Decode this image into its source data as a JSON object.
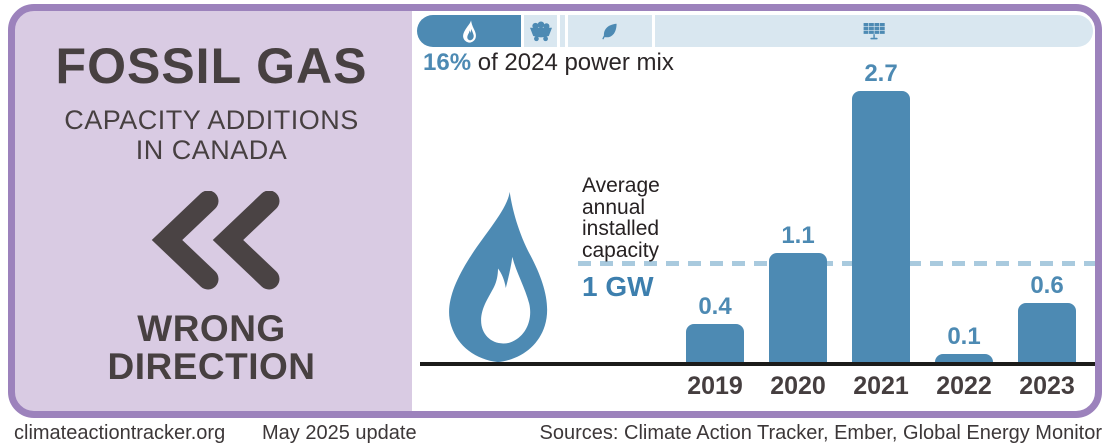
{
  "panel": {
    "title": "FOSSIL GAS",
    "subtitle_line1": "CAPACITY ADDITIONS",
    "subtitle_line2": "IN CANADA",
    "verdict_line1": "WRONG",
    "verdict_line2": "DIRECTION"
  },
  "power_mix": {
    "highlight": "16%",
    "label_rest": " of 2024 power mix",
    "segments": [
      {
        "name": "fossil-gas",
        "icon": "flame-icon",
        "share_pct": 15.7,
        "highlighted": true
      },
      {
        "name": "coal",
        "icon": "coal-cart-icon",
        "share_pct": 4.9,
        "highlighted": false
      },
      {
        "name": "other-fossil",
        "icon": "",
        "share_pct": 0.8,
        "highlighted": false
      },
      {
        "name": "bioenergy",
        "icon": "leaf-icon",
        "share_pct": 12.7,
        "highlighted": false
      },
      {
        "name": "renewables",
        "icon": "solar-panel-icon",
        "share_pct": 65.9,
        "highlighted": false
      }
    ]
  },
  "chart_data": {
    "type": "bar",
    "title": "Fossil gas capacity additions in Canada",
    "categories": [
      "2019",
      "2020",
      "2021",
      "2022",
      "2023"
    ],
    "values": [
      0.4,
      1.1,
      2.7,
      0.1,
      0.6
    ],
    "unit": "GW",
    "ylim": [
      0,
      2.8
    ],
    "grid": false,
    "value_labels": true,
    "bar_color": "#4d8ab3",
    "average_line": {
      "value": 1,
      "label": "1 GW",
      "annotation": "Average annual installed capacity",
      "style": "dashed",
      "color": "#a9cade"
    }
  },
  "footer": {
    "site": "climateactiontracker.org",
    "update": "May 2025 update",
    "sources": "Sources: Climate Action Tracker, Ember, Global Energy Monitor"
  },
  "colors": {
    "accent_blue": "#4d8ab3",
    "light_blue": "#d9e7f0",
    "dashed_blue": "#a9cade",
    "border_purple": "#9c82bc",
    "panel_lavender": "#d9cbe3",
    "dark_text": "#474041"
  }
}
